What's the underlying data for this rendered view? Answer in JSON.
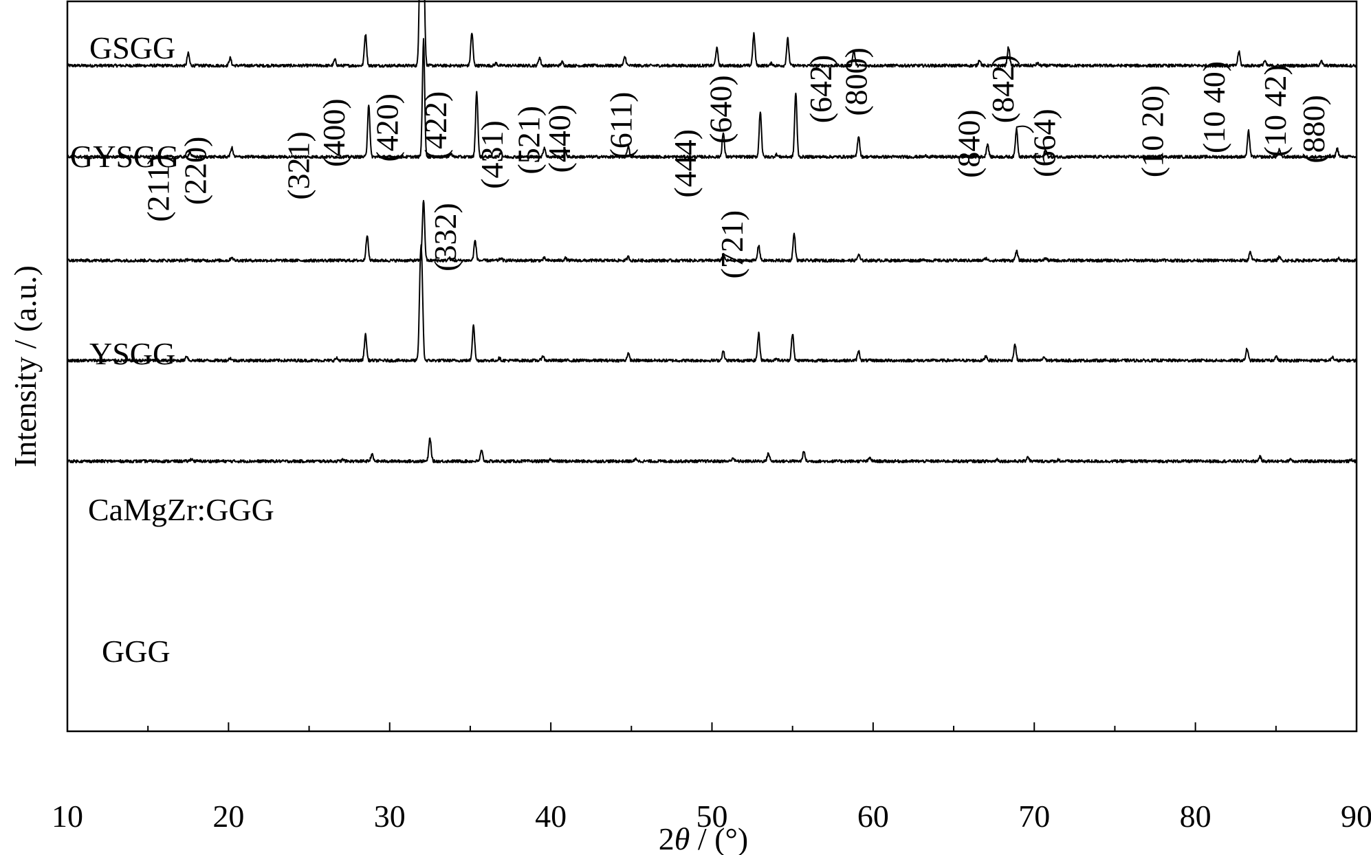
{
  "chart_data": {
    "type": "line",
    "xlabel_prefix": "2",
    "xlabel_theta": "θ",
    "xlabel_suffix": " / (°)",
    "ylabel": "Intensity / (a.u.)",
    "xlim": [
      10,
      90
    ],
    "xticks": [
      10,
      20,
      30,
      40,
      50,
      60,
      70,
      80,
      90
    ],
    "xtick_labels": [
      "10",
      "20",
      "30",
      "40",
      "50",
      "60",
      "70",
      "80",
      "90"
    ],
    "series": [
      {
        "name": "GSGG",
        "baseline": 0.912,
        "peaks": [
          [
            17.5,
            0.105
          ],
          [
            20.1,
            0.065
          ],
          [
            26.6,
            0.05
          ],
          [
            28.5,
            0.27
          ],
          [
            31.9,
            1.0
          ],
          [
            32.1,
            0.98
          ],
          [
            35.1,
            0.28
          ],
          [
            36.6,
            0.02
          ],
          [
            39.3,
            0.07
          ],
          [
            40.7,
            0.03
          ],
          [
            44.6,
            0.075
          ],
          [
            50.3,
            0.15
          ],
          [
            52.6,
            0.27
          ],
          [
            53.7,
            0.02
          ],
          [
            54.7,
            0.23
          ],
          [
            58.8,
            0.13
          ],
          [
            66.6,
            0.05
          ],
          [
            68.4,
            0.16
          ],
          [
            70.2,
            0.02
          ],
          [
            82.7,
            0.12
          ],
          [
            84.3,
            0.04
          ],
          [
            87.8,
            0.04
          ]
        ]
      },
      {
        "name": "GYSGG",
        "baseline": 0.787,
        "peaks": [
          [
            17.6,
            0.04
          ],
          [
            20.2,
            0.08
          ],
          [
            28.7,
            0.45
          ],
          [
            32.1,
            1.0
          ],
          [
            33.8,
            0.03
          ],
          [
            35.4,
            0.56
          ],
          [
            36.9,
            0.04
          ],
          [
            39.6,
            0.08
          ],
          [
            40.9,
            0.05
          ],
          [
            44.8,
            0.09
          ],
          [
            50.7,
            0.2
          ],
          [
            53.0,
            0.39
          ],
          [
            54.0,
            0.02
          ],
          [
            55.2,
            0.55
          ],
          [
            59.1,
            0.18
          ],
          [
            63.3,
            0.01
          ],
          [
            67.1,
            0.11
          ],
          [
            68.9,
            0.24
          ],
          [
            70.7,
            0.06
          ],
          [
            77.9,
            0.02
          ],
          [
            83.3,
            0.22
          ],
          [
            85.2,
            0.06
          ],
          [
            88.8,
            0.07
          ]
        ]
      },
      {
        "name": "YSGG",
        "baseline": 0.645,
        "peaks": [
          [
            17.5,
            0.01
          ],
          [
            20.2,
            0.03
          ],
          [
            28.6,
            0.22
          ],
          [
            32.1,
            0.52
          ],
          [
            33.7,
            0.02
          ],
          [
            35.3,
            0.17
          ],
          [
            36.9,
            0.02
          ],
          [
            39.6,
            0.02
          ],
          [
            40.9,
            0.02
          ],
          [
            44.8,
            0.03
          ],
          [
            50.7,
            0.05
          ],
          [
            52.9,
            0.13
          ],
          [
            55.1,
            0.23
          ],
          [
            59.1,
            0.05
          ],
          [
            63.2,
            0.01
          ],
          [
            67.0,
            0.02
          ],
          [
            68.9,
            0.08
          ],
          [
            70.7,
            0.02
          ],
          [
            78.0,
            0.01
          ],
          [
            83.4,
            0.07
          ],
          [
            85.2,
            0.03
          ],
          [
            88.9,
            0.02
          ]
        ]
      },
      {
        "name": "CaMgZr:GGG",
        "baseline": 0.508,
        "peaks": [
          [
            17.4,
            0.04
          ],
          [
            20.1,
            0.02
          ],
          [
            26.7,
            0.02
          ],
          [
            28.5,
            0.22
          ],
          [
            31.9,
            0.65
          ],
          [
            32.0,
            0.62
          ],
          [
            35.2,
            0.31
          ],
          [
            36.8,
            0.02
          ],
          [
            39.5,
            0.04
          ],
          [
            44.8,
            0.06
          ],
          [
            50.7,
            0.08
          ],
          [
            52.9,
            0.23
          ],
          [
            54.0,
            0.02
          ],
          [
            55.0,
            0.23
          ],
          [
            59.1,
            0.08
          ],
          [
            67.0,
            0.04
          ],
          [
            68.8,
            0.14
          ],
          [
            70.6,
            0.03
          ],
          [
            83.2,
            0.1
          ],
          [
            85.0,
            0.04
          ],
          [
            88.5,
            0.03
          ]
        ]
      },
      {
        "name": "GGG",
        "baseline": 0.37,
        "peaks": [
          [
            17.7,
            0.02
          ],
          [
            27.1,
            0.013
          ],
          [
            28.9,
            0.06
          ],
          [
            32.5,
            0.2
          ],
          [
            35.7,
            0.09
          ],
          [
            40.0,
            0.02
          ],
          [
            45.3,
            0.02
          ],
          [
            51.3,
            0.03
          ],
          [
            53.5,
            0.07
          ],
          [
            55.7,
            0.08
          ],
          [
            59.8,
            0.03
          ],
          [
            67.7,
            0.017
          ],
          [
            69.6,
            0.04
          ],
          [
            71.5,
            0.013
          ],
          [
            84.0,
            0.04
          ],
          [
            85.9,
            0.02
          ],
          [
            89.7,
            0.012
          ]
        ]
      }
    ],
    "hkl_labels": [
      {
        "text": "(211)",
        "x": 16.3,
        "y": 0.744
      },
      {
        "text": "(220)",
        "x": 18.6,
        "y": 0.768
      },
      {
        "text": "(321)",
        "x": 25.0,
        "y": 0.775
      },
      {
        "text": "(400)",
        "x": 27.2,
        "y": 0.82
      },
      {
        "text": "(420)",
        "x": 30.5,
        "y": 0.827
      },
      {
        "text": "(422)",
        "x": 33.5,
        "y": 0.83
      },
      {
        "text": "(332)",
        "x": 34.1,
        "y": 0.677
      },
      {
        "text": "(431)",
        "x": 37.0,
        "y": 0.79
      },
      {
        "text": "(521)",
        "x": 39.3,
        "y": 0.81
      },
      {
        "text": "(440)",
        "x": 41.2,
        "y": 0.812
      },
      {
        "text": "(611)",
        "x": 45.0,
        "y": 0.83
      },
      {
        "text": "(444)",
        "x": 49.0,
        "y": 0.778
      },
      {
        "text": "(640)",
        "x": 51.2,
        "y": 0.852
      },
      {
        "text": "(721)",
        "x": 51.9,
        "y": 0.667
      },
      {
        "text": "(642)",
        "x": 57.4,
        "y": 0.88
      },
      {
        "text": "(800)",
        "x": 59.6,
        "y": 0.89
      },
      {
        "text": "(840)",
        "x": 66.6,
        "y": 0.805
      },
      {
        "text": "(842)",
        "x": 68.7,
        "y": 0.88
      },
      {
        "text": "(664)",
        "x": 71.3,
        "y": 0.806
      },
      {
        "text": "(10 20)",
        "x": 78.0,
        "y": 0.822
      },
      {
        "text": "(10 40)",
        "x": 81.8,
        "y": 0.855
      },
      {
        "text": "(10 42)",
        "x": 85.6,
        "y": 0.85
      },
      {
        "text": "(880)",
        "x": 88.0,
        "y": 0.825
      }
    ]
  }
}
